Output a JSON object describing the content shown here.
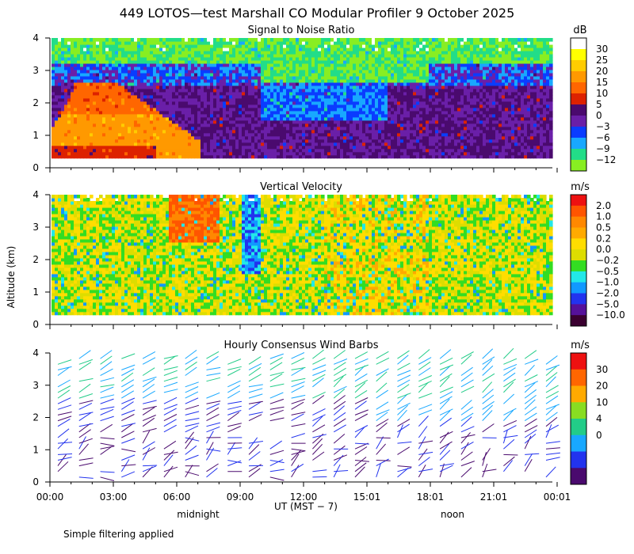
{
  "page_title": "449 LOTOS—test Marshall CO Modular Profiler  9 October 2025",
  "y_axis_label": "Altitude (km)",
  "x_axis_label": "UT  (MST − 7)",
  "x_notes": {
    "midnight": "midnight",
    "noon": "noon"
  },
  "footer_note": "Simple filtering applied",
  "chart_data": [
    {
      "type": "heatmap",
      "title": "Signal to Noise Ratio",
      "units": "dB",
      "ylim": [
        0,
        4
      ],
      "yticks": [
        "0",
        "1",
        "2",
        "3",
        "4"
      ],
      "xticks": [
        "00:00",
        "03:00",
        "06:00",
        "09:00",
        "12:00",
        "15:01",
        "18:01",
        "21:01",
        "00:01"
      ],
      "colorbar": {
        "labels": [
          "30",
          "25",
          "20",
          "15",
          "10",
          "5",
          "0",
          "−3",
          "−6",
          "−9",
          "−12"
        ],
        "colors": [
          "#ffffff",
          "#ffff00",
          "#ffcc00",
          "#ff9900",
          "#ff6600",
          "#dd2200",
          "#4a0a6e",
          "#6a1fa8",
          "#0a3cff",
          "#18a8ff",
          "#22dd88",
          "#88ee22"
        ]
      },
      "description_series": [
        {
          "name": "high SNR plume (dB)",
          "x_hours": [
            0.5,
            1.5,
            3.0,
            4.5,
            6.0
          ],
          "top_km": [
            1.6,
            2.6,
            2.5,
            1.7,
            0.9
          ],
          "peak_db": 20
        }
      ]
    },
    {
      "type": "heatmap",
      "title": "Vertical Velocity",
      "units": "m/s",
      "ylim": [
        0,
        4
      ],
      "yticks": [
        "0",
        "1",
        "2",
        "3",
        "4"
      ],
      "xticks": [
        "00:00",
        "03:00",
        "06:00",
        "09:00",
        "12:00",
        "15:01",
        "18:01",
        "21:01",
        "00:01"
      ],
      "colorbar": {
        "labels": [
          "2.0",
          "1.0",
          "0.5",
          "0.2",
          "0.0",
          "−0.2",
          "−0.5",
          "−1.0",
          "−2.0",
          "−5.0",
          "−10.0"
        ],
        "colors": [
          "#ee1111",
          "#ff5500",
          "#ff8800",
          "#ffaa00",
          "#ffdd00",
          "#dddd00",
          "#33dd22",
          "#22e8e8",
          "#1199ff",
          "#2233ee",
          "#55119a",
          "#3a0030"
        ]
      }
    },
    {
      "type": "wind_barbs",
      "title": "Hourly Consensus Wind Barbs",
      "units": "m/s",
      "ylim": [
        0,
        4
      ],
      "yticks": [
        "0",
        "1",
        "2",
        "3",
        "4"
      ],
      "xticks": [
        "00:00",
        "03:00",
        "06:00",
        "09:00",
        "12:00",
        "15:01",
        "18:01",
        "21:01",
        "00:01"
      ],
      "colorbar": {
        "labels": [
          "30",
          "20",
          "10",
          "4",
          "0"
        ],
        "colors": [
          "#ee1111",
          "#ff6600",
          "#ffaa00",
          "#88dd22",
          "#22cc88",
          "#18a8ff",
          "#2233ee",
          "#4a0a6e"
        ]
      }
    }
  ]
}
